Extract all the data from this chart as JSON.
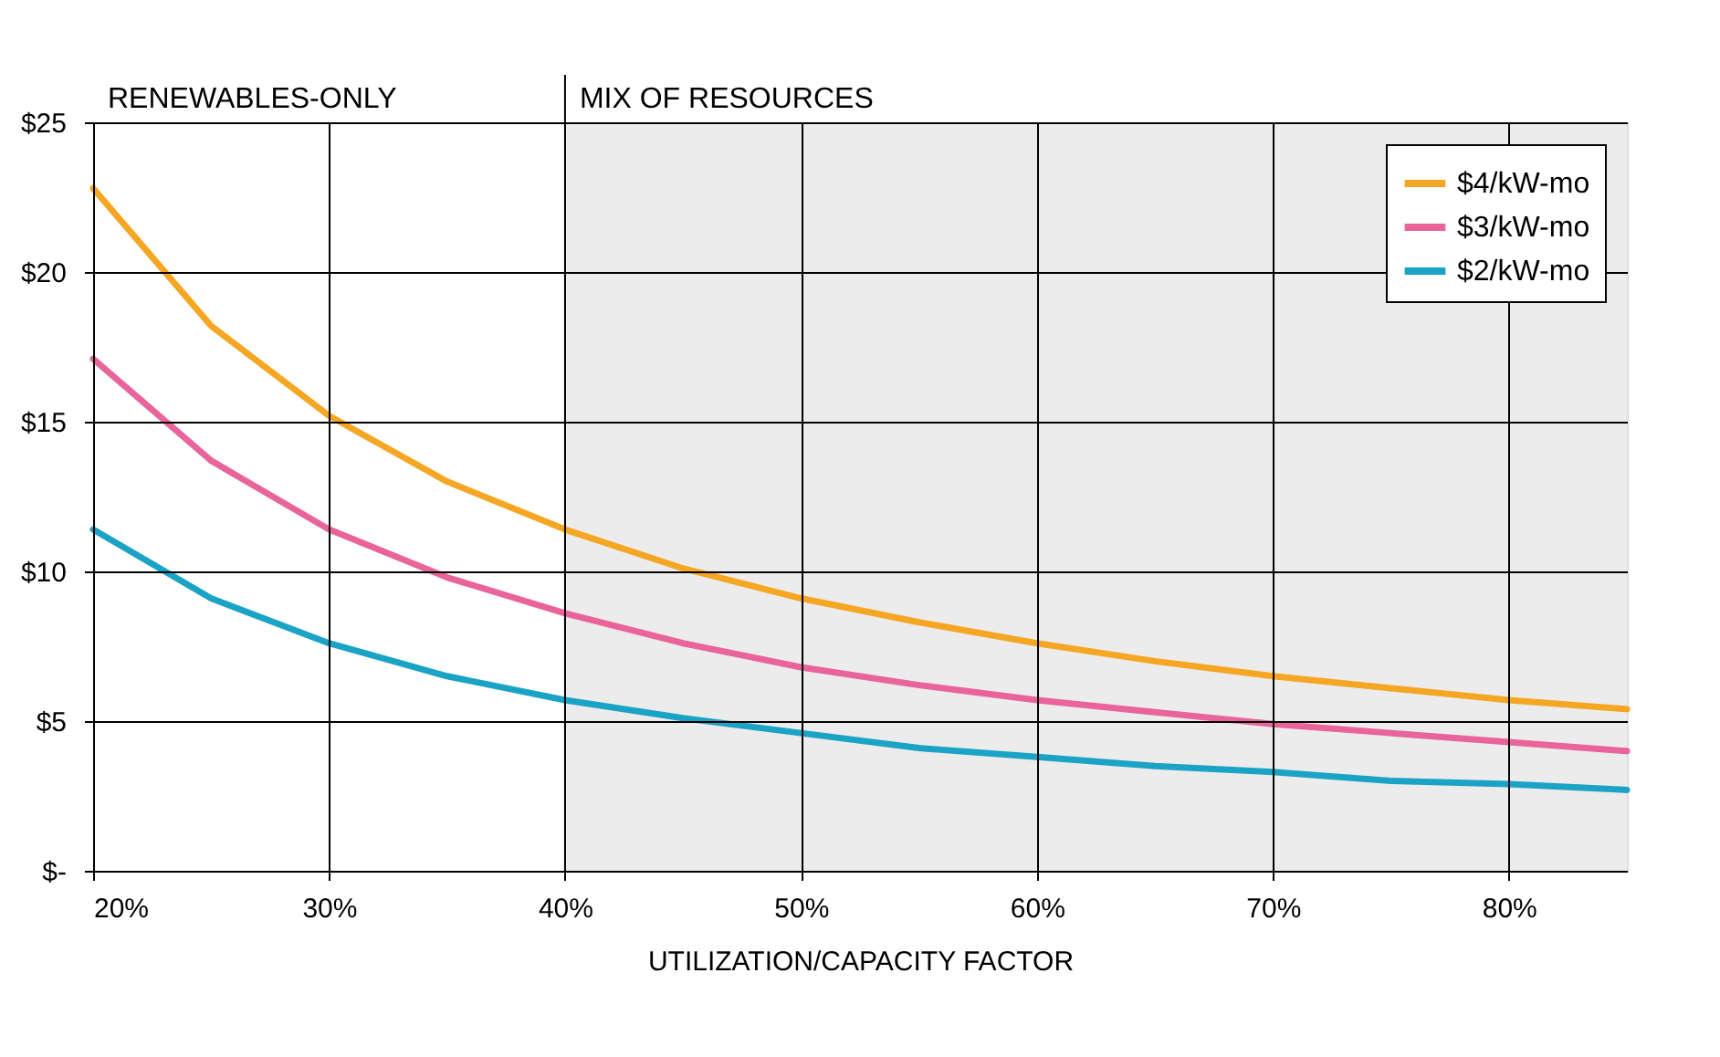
{
  "chart_data": {
    "type": "line",
    "xlabel": "UTILIZATION/CAPACITY FACTOR",
    "x": [
      20,
      25,
      30,
      35,
      40,
      45,
      50,
      55,
      60,
      65,
      70,
      75,
      80,
      85
    ],
    "series": [
      {
        "name": "$4/kW-mo",
        "color": "#f5a623",
        "values": [
          22.8,
          18.2,
          15.2,
          13.0,
          11.4,
          10.1,
          9.1,
          8.3,
          7.6,
          7.0,
          6.5,
          6.1,
          5.7,
          5.4
        ]
      },
      {
        "name": "$3/kW-mo",
        "color": "#e8649b",
        "values": [
          17.1,
          13.7,
          11.4,
          9.8,
          8.6,
          7.6,
          6.8,
          6.2,
          5.7,
          5.3,
          4.9,
          4.6,
          4.3,
          4.0
        ]
      },
      {
        "name": "$2/kW-mo",
        "color": "#1ba3c6",
        "values": [
          11.4,
          9.1,
          7.6,
          6.5,
          5.7,
          5.1,
          4.6,
          4.1,
          3.8,
          3.5,
          3.3,
          3.0,
          2.9,
          2.7
        ]
      }
    ],
    "xlim": [
      20,
      85
    ],
    "xticks": [
      {
        "value": 20,
        "label": "20%"
      },
      {
        "value": 30,
        "label": "30%"
      },
      {
        "value": 40,
        "label": "40%"
      },
      {
        "value": 50,
        "label": "50%"
      },
      {
        "value": 60,
        "label": "60%"
      },
      {
        "value": 70,
        "label": "70%"
      },
      {
        "value": 80,
        "label": "80%"
      }
    ],
    "ylim": [
      0,
      25
    ],
    "yticks": [
      {
        "value": 0,
        "label": "$-"
      },
      {
        "value": 5,
        "label": "$5"
      },
      {
        "value": 10,
        "label": "$10"
      },
      {
        "value": 15,
        "label": "$15"
      },
      {
        "value": 20,
        "label": "$20"
      },
      {
        "value": 25,
        "label": "$25"
      }
    ],
    "annotations": [
      "RENEWABLES-ONLY"
    ],
    "bands": [
      {
        "axis": "x",
        "from": 40,
        "to": 85,
        "label": "MIX OF RESOURCES",
        "color": "#ececec"
      }
    ],
    "grid": true,
    "legend": "top right",
    "marker": "none",
    "line_style": "solid"
  }
}
